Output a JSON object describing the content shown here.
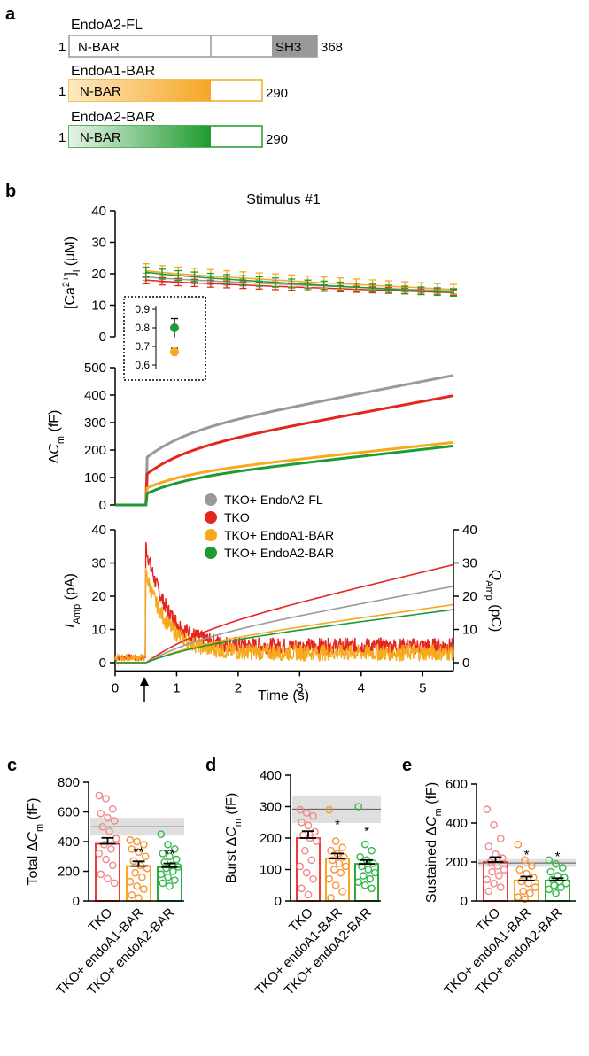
{
  "panel_a": {
    "letter": "a",
    "constructs": [
      {
        "title": "EndoA2-FL",
        "start": "1",
        "end": "368",
        "domain1": "N-BAR",
        "domain2": "SH3",
        "color": "#8c8c8c"
      },
      {
        "title": "EndoA1-BAR",
        "start": "1",
        "end": "290",
        "domain1": "N-BAR",
        "color": "#f5a623"
      },
      {
        "title": "EndoA2-BAR",
        "start": "1",
        "end": "290",
        "domain1": "N-BAR",
        "color": "#1f9a2e"
      }
    ]
  },
  "panel_b": {
    "letter": "b",
    "stimulus_title": "Stimulus #1",
    "legend": [
      "TKO+ EndoA2-FL",
      "TKO",
      "TKO+ EndoA1-BAR",
      "TKO+ EndoA2-BAR"
    ],
    "colors": {
      "fl": "#999999",
      "tko": "#e5261f",
      "a1": "#f7a81b",
      "a2": "#1e9a35"
    },
    "xlabel": "Time (s)",
    "x_ticks": [
      "0",
      "1",
      "2",
      "3",
      "4",
      "5"
    ]
  },
  "chart_data": [
    {
      "type": "line",
      "name": "calcium",
      "ylabel_parts": [
        "[Ca",
        "2+",
        "]",
        "i",
        " (μM)"
      ],
      "ylim": [
        0,
        40
      ],
      "y_ticks": [
        "0",
        "10",
        "20",
        "30",
        "40"
      ],
      "x_start": 0.5,
      "x_end": 5.5,
      "n_points": 20,
      "series": [
        {
          "key": "fl",
          "start": 19.0,
          "end": 14.5,
          "err": 1.2
        },
        {
          "key": "tko",
          "start": 18.0,
          "end": 14.0,
          "err": 1.2
        },
        {
          "key": "a1",
          "start": 21.0,
          "end": 15.0,
          "err": 2.2
        },
        {
          "key": "a2",
          "start": 20.5,
          "end": 14.0,
          "err": 1.6
        }
      ],
      "inset": {
        "y_ticks": [
          "0.6",
          "0.7",
          "0.8",
          "0.9"
        ],
        "ylim": [
          0.6,
          0.9
        ],
        "points": [
          {
            "key": "a2",
            "value": 0.8,
            "err": 0.05
          },
          {
            "key": "a1",
            "value": 0.67,
            "err": 0.02
          }
        ]
      }
    },
    {
      "type": "line",
      "name": "capacitance",
      "ylabel_parts": [
        "Δ",
        "C",
        "m",
        " (fF)"
      ],
      "ylim": [
        0,
        500
      ],
      "y_ticks": [
        "0",
        "100",
        "200",
        "300",
        "400",
        "500"
      ],
      "stim_x": 0.5,
      "x_end": 5.5,
      "series": [
        {
          "key": "fl",
          "jump": 170,
          "end": 472
        },
        {
          "key": "tko",
          "jump": 110,
          "end": 398
        },
        {
          "key": "a1",
          "jump": 60,
          "end": 228
        },
        {
          "key": "a2",
          "jump": 40,
          "end": 215
        }
      ]
    },
    {
      "type": "line",
      "name": "current",
      "ylabel_left_parts": [
        "I",
        "Amp",
        " (pA)"
      ],
      "ylabel_right_parts": [
        "Q",
        "Amp",
        " (pC)"
      ],
      "ylim": [
        0,
        40
      ],
      "y_ticks": [
        "0",
        "10",
        "20",
        "30",
        "40"
      ],
      "y_ticks_right": [
        "0",
        "10",
        "20",
        "30",
        "40"
      ],
      "stim_x": 0.5,
      "x_end": 5.5,
      "current": [
        {
          "key": "tko",
          "peak": 35,
          "baseline": 5
        },
        {
          "key": "a1",
          "peak": 27,
          "baseline": 3
        }
      ],
      "charge": [
        {
          "key": "tko",
          "end": 29.5
        },
        {
          "key": "fl",
          "end": 23
        },
        {
          "key": "a1",
          "end": 17.5
        },
        {
          "key": "a2",
          "end": 16
        }
      ]
    },
    {
      "type": "bar",
      "letter": "c",
      "ylabel_parts": [
        "Total Δ",
        "C",
        "m",
        " (fF)"
      ],
      "ylim": [
        0,
        800
      ],
      "y_ticks": [
        "0",
        "200",
        "400",
        "600",
        "800"
      ],
      "categories": [
        "TKO",
        "TKO+ endoA1-BAR",
        "TKO+ endoA2-BAR"
      ],
      "means": [
        385,
        235,
        228
      ],
      "sems": [
        40,
        32,
        25
      ],
      "stars": [
        "",
        "**",
        "**"
      ],
      "band": {
        "mean": 500,
        "low": 440,
        "high": 560
      },
      "points": [
        [
          710,
          690,
          620,
          590,
          560,
          540,
          500,
          470,
          420,
          380,
          350,
          320,
          280,
          240,
          180,
          150,
          120
        ],
        [
          410,
          400,
          380,
          350,
          330,
          300,
          270,
          240,
          220,
          190,
          160,
          130,
          100,
          80,
          40,
          20
        ],
        [
          450,
          380,
          350,
          320,
          300,
          280,
          260,
          240,
          230,
          220,
          200,
          180,
          160,
          140,
          120,
          100
        ]
      ]
    },
    {
      "type": "bar",
      "letter": "d",
      "ylabel_parts": [
        "Burst Δ",
        "C",
        "m",
        " (fF)"
      ],
      "ylim": [
        0,
        400
      ],
      "y_ticks": [
        "0",
        "100",
        "200",
        "300",
        "400"
      ],
      "categories": [
        "TKO",
        "TKO+ endoA1-BAR",
        "TKO+ endoA2-BAR"
      ],
      "means": [
        200,
        135,
        118
      ],
      "sems": [
        22,
        16,
        12
      ],
      "stars": [
        "",
        "*",
        "*"
      ],
      "band": {
        "mean": 292,
        "low": 248,
        "high": 336
      },
      "points": [
        [
          290,
          280,
          270,
          250,
          240,
          220,
          210,
          200,
          190,
          160,
          130,
          110,
          90,
          70,
          40,
          20
        ],
        [
          290,
          190,
          170,
          160,
          150,
          140,
          130,
          120,
          110,
          100,
          90,
          70,
          50,
          30,
          10
        ],
        [
          300,
          180,
          160,
          140,
          130,
          120,
          110,
          100,
          90,
          80,
          70,
          60,
          50,
          40
        ]
      ]
    },
    {
      "type": "bar",
      "letter": "e",
      "ylabel_parts": [
        "Sustained Δ",
        "C",
        "m",
        " (fF)"
      ],
      "ylim": [
        0,
        600
      ],
      "y_ticks": [
        "0",
        "200",
        "400",
        "600"
      ],
      "categories": [
        "TKO",
        "TKO+ endoA1-BAR",
        "TKO+ endoA2-BAR"
      ],
      "means": [
        200,
        105,
        105
      ],
      "sems": [
        25,
        20,
        12
      ],
      "stars": [
        "",
        "*",
        "*"
      ],
      "band": {
        "mean": 195,
        "low": 175,
        "high": 215
      },
      "points": [
        [
          470,
          390,
          320,
          280,
          240,
          220,
          200,
          180,
          160,
          150,
          130,
          110,
          90,
          70,
          50
        ],
        [
          290,
          210,
          180,
          160,
          140,
          120,
          100,
          90,
          70,
          50,
          40,
          20,
          10
        ],
        [
          210,
          190,
          170,
          150,
          130,
          120,
          110,
          100,
          90,
          80,
          70,
          60,
          40
        ]
      ]
    }
  ]
}
